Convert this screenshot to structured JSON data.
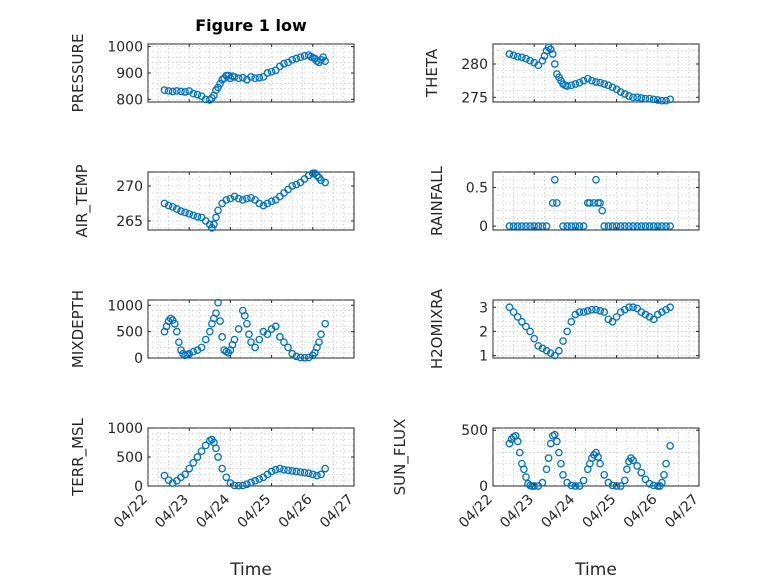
{
  "chart_data": [
    {
      "type": "scatter",
      "title": "Figure 1 low",
      "ylabel": "PRESSURE",
      "xlabel": "",
      "xlim": [
        "04/22",
        "04/27"
      ],
      "xticks": [
        "04/22",
        "04/23",
        "04/24",
        "04/25",
        "04/26",
        "04/27"
      ],
      "ylim": [
        790,
        1010
      ],
      "yticks": [
        800,
        900,
        1000
      ],
      "x_days": [
        0.4,
        0.5,
        0.6,
        0.7,
        0.8,
        0.9,
        1.0,
        1.1,
        1.2,
        1.3,
        1.4,
        1.5,
        1.55,
        1.6,
        1.65,
        1.7,
        1.75,
        1.8,
        1.85,
        1.9,
        1.95,
        2.0,
        2.05,
        2.1,
        2.2,
        2.3,
        2.4,
        2.5,
        2.6,
        2.7,
        2.8,
        2.9,
        3.0,
        3.1,
        3.2,
        3.3,
        3.4,
        3.5,
        3.6,
        3.7,
        3.8,
        3.9,
        3.95,
        4.0,
        4.05,
        4.1,
        4.15,
        4.2,
        4.25,
        4.3
      ],
      "values": [
        835,
        832,
        830,
        832,
        830,
        828,
        832,
        822,
        818,
        812,
        800,
        798,
        805,
        815,
        835,
        845,
        860,
        875,
        880,
        890,
        890,
        880,
        888,
        885,
        880,
        882,
        875,
        885,
        880,
        882,
        885,
        900,
        905,
        910,
        925,
        935,
        940,
        950,
        955,
        960,
        965,
        968,
        962,
        958,
        955,
        945,
        940,
        950,
        960,
        945
      ]
    },
    {
      "type": "scatter",
      "ylabel": "THETA",
      "xlabel": "",
      "xlim": [
        "04/22",
        "04/27"
      ],
      "xticks": [
        "04/22",
        "04/23",
        "04/24",
        "04/25",
        "04/26",
        "04/27"
      ],
      "ylim": [
        274.3,
        283
      ],
      "yticks": [
        275,
        280
      ],
      "x_days": [
        0.4,
        0.5,
        0.6,
        0.7,
        0.8,
        0.9,
        1.0,
        1.1,
        1.2,
        1.25,
        1.3,
        1.35,
        1.4,
        1.45,
        1.5,
        1.55,
        1.6,
        1.65,
        1.7,
        1.75,
        1.8,
        1.9,
        2.0,
        2.1,
        2.2,
        2.3,
        2.4,
        2.5,
        2.6,
        2.7,
        2.8,
        2.9,
        3.0,
        3.1,
        3.2,
        3.3,
        3.4,
        3.5,
        3.6,
        3.7,
        3.8,
        3.9,
        4.0,
        4.1,
        4.2,
        4.3
      ],
      "values": [
        281.5,
        281.3,
        281.1,
        281,
        280.8,
        280.5,
        280.2,
        279.8,
        280.5,
        281.2,
        282,
        282.5,
        282.2,
        281.5,
        280,
        278.5,
        278,
        277.5,
        277,
        276.8,
        276.7,
        276.8,
        277,
        277.2,
        277.5,
        277.8,
        277.5,
        277.3,
        277.2,
        277,
        276.8,
        276.5,
        276.2,
        275.8,
        275.5,
        275.2,
        275.0,
        275.0,
        274.9,
        274.8,
        274.8,
        274.7,
        274.6,
        274.5,
        274.5,
        274.7
      ]
    },
    {
      "type": "scatter",
      "ylabel": "AIR_TEMP",
      "xlabel": "",
      "xlim": [
        "04/22",
        "04/27"
      ],
      "xticks": [
        "04/22",
        "04/23",
        "04/24",
        "04/25",
        "04/26",
        "04/27"
      ],
      "ylim": [
        263.7,
        272
      ],
      "yticks": [
        265,
        270
      ],
      "x_days": [
        0.4,
        0.5,
        0.6,
        0.7,
        0.8,
        0.9,
        1.0,
        1.1,
        1.2,
        1.3,
        1.4,
        1.5,
        1.55,
        1.6,
        1.65,
        1.7,
        1.8,
        1.9,
        2.0,
        2.1,
        2.2,
        2.3,
        2.4,
        2.5,
        2.6,
        2.7,
        2.8,
        2.9,
        3.0,
        3.1,
        3.2,
        3.3,
        3.4,
        3.5,
        3.6,
        3.7,
        3.8,
        3.9,
        4.0,
        4.05,
        4.1,
        4.15,
        4.2,
        4.3
      ],
      "values": [
        267.5,
        267.2,
        267,
        266.7,
        266.4,
        266.2,
        266,
        265.8,
        265.6,
        265.5,
        265,
        264.5,
        264,
        264.5,
        265.5,
        266.5,
        267.5,
        268,
        268.2,
        268.5,
        268.2,
        268,
        268.2,
        268.3,
        268,
        267.5,
        267.2,
        267.5,
        267.8,
        268,
        268.5,
        269,
        269.5,
        270,
        270.2,
        270.5,
        271,
        271.5,
        271.8,
        271.8,
        271.5,
        271.2,
        270.8,
        270.5
      ]
    },
    {
      "type": "scatter",
      "ylabel": "RAINFALL",
      "xlabel": "",
      "xlim": [
        "04/22",
        "04/27"
      ],
      "xticks": [
        "04/22",
        "04/23",
        "04/24",
        "04/25",
        "04/26",
        "04/27"
      ],
      "ylim": [
        -0.05,
        0.7
      ],
      "yticks": [
        0,
        0.5
      ],
      "x_days": [
        0.4,
        0.5,
        0.6,
        0.7,
        0.8,
        0.9,
        1.0,
        1.1,
        1.2,
        1.3,
        1.45,
        1.5,
        1.55,
        1.7,
        1.8,
        1.9,
        2.0,
        2.1,
        2.2,
        2.3,
        2.35,
        2.45,
        2.5,
        2.55,
        2.6,
        2.65,
        2.7,
        2.8,
        2.9,
        3.0,
        3.1,
        3.2,
        3.3,
        3.4,
        3.5,
        3.6,
        3.7,
        3.8,
        3.9,
        4.0,
        4.1,
        4.2,
        4.3
      ],
      "values": [
        0,
        0,
        0,
        0,
        0,
        0,
        0,
        0,
        0,
        0,
        0.3,
        0.6,
        0.3,
        0,
        0,
        0,
        0,
        0,
        0,
        0.3,
        0.3,
        0.3,
        0.6,
        0.3,
        0.3,
        0.2,
        0,
        0,
        0,
        0,
        0,
        0,
        0,
        0,
        0,
        0,
        0,
        0,
        0,
        0,
        0,
        0,
        0
      ]
    },
    {
      "type": "scatter",
      "ylabel": "MIXDEPTH",
      "xlabel": "",
      "xlim": [
        "04/22",
        "04/27"
      ],
      "xticks": [
        "04/22",
        "04/23",
        "04/24",
        "04/25",
        "04/26",
        "04/27"
      ],
      "ylim": [
        0,
        1100
      ],
      "yticks": [
        0,
        500,
        1000
      ],
      "x_days": [
        0.4,
        0.45,
        0.5,
        0.55,
        0.6,
        0.65,
        0.7,
        0.75,
        0.8,
        0.85,
        0.9,
        0.95,
        1.0,
        1.1,
        1.2,
        1.3,
        1.4,
        1.5,
        1.55,
        1.6,
        1.65,
        1.7,
        1.75,
        1.8,
        1.85,
        1.9,
        1.95,
        2.0,
        2.05,
        2.1,
        2.2,
        2.3,
        2.35,
        2.4,
        2.45,
        2.5,
        2.6,
        2.7,
        2.8,
        2.9,
        3.0,
        3.1,
        3.2,
        3.3,
        3.4,
        3.5,
        3.6,
        3.7,
        3.8,
        3.9,
        4.0,
        4.05,
        4.1,
        4.15,
        4.2,
        4.3
      ],
      "values": [
        500,
        600,
        700,
        750,
        720,
        650,
        500,
        300,
        150,
        80,
        50,
        60,
        80,
        120,
        150,
        200,
        350,
        500,
        650,
        750,
        850,
        1050,
        700,
        400,
        150,
        120,
        100,
        150,
        250,
        350,
        550,
        900,
        800,
        650,
        450,
        300,
        200,
        350,
        500,
        450,
        550,
        600,
        400,
        300,
        200,
        80,
        30,
        10,
        5,
        10,
        50,
        100,
        200,
        300,
        450,
        650
      ]
    },
    {
      "type": "scatter",
      "ylabel": "H2OMIXRA",
      "xlabel": "",
      "xlim": [
        "04/22",
        "04/27"
      ],
      "xticks": [
        "04/22",
        "04/23",
        "04/24",
        "04/25",
        "04/26",
        "04/27"
      ],
      "ylim": [
        0.9,
        3.3
      ],
      "yticks": [
        1,
        2,
        3
      ],
      "x_days": [
        0.4,
        0.5,
        0.6,
        0.7,
        0.8,
        0.9,
        1.0,
        1.1,
        1.2,
        1.3,
        1.4,
        1.5,
        1.6,
        1.7,
        1.8,
        1.9,
        2.0,
        2.1,
        2.2,
        2.3,
        2.4,
        2.5,
        2.6,
        2.7,
        2.8,
        2.9,
        3.0,
        3.1,
        3.2,
        3.3,
        3.4,
        3.5,
        3.6,
        3.7,
        3.8,
        3.9,
        4.0,
        4.1,
        4.2,
        4.3
      ],
      "values": [
        3.0,
        2.8,
        2.6,
        2.4,
        2.2,
        2.0,
        1.7,
        1.4,
        1.3,
        1.2,
        1.1,
        1.0,
        1.2,
        1.6,
        2.0,
        2.4,
        2.7,
        2.8,
        2.8,
        2.85,
        2.9,
        2.9,
        2.85,
        2.8,
        2.5,
        2.4,
        2.6,
        2.8,
        2.9,
        3.0,
        3.0,
        2.95,
        2.8,
        2.7,
        2.6,
        2.5,
        2.7,
        2.8,
        2.9,
        3.0
      ]
    },
    {
      "type": "scatter",
      "ylabel": "TERR_MSL",
      "xlabel": "Time",
      "xlim": [
        "04/22",
        "04/27"
      ],
      "xticks": [
        "04/22",
        "04/23",
        "04/24",
        "04/25",
        "04/26",
        "04/27"
      ],
      "ylim": [
        0,
        1000
      ],
      "yticks": [
        0,
        500,
        1000
      ],
      "x_days": [
        0.4,
        0.5,
        0.6,
        0.7,
        0.8,
        0.9,
        1.0,
        1.1,
        1.2,
        1.3,
        1.4,
        1.5,
        1.55,
        1.6,
        1.65,
        1.7,
        1.8,
        1.9,
        2.0,
        2.1,
        2.2,
        2.3,
        2.4,
        2.5,
        2.6,
        2.7,
        2.8,
        2.9,
        3.0,
        3.1,
        3.2,
        3.3,
        3.4,
        3.5,
        3.6,
        3.7,
        3.8,
        3.9,
        4.0,
        4.1,
        4.2,
        4.3
      ],
      "values": [
        180,
        100,
        50,
        90,
        150,
        200,
        300,
        400,
        500,
        600,
        700,
        780,
        800,
        750,
        650,
        500,
        300,
        150,
        50,
        10,
        5,
        10,
        30,
        60,
        90,
        120,
        150,
        200,
        250,
        280,
        300,
        280,
        270,
        260,
        250,
        240,
        230,
        220,
        200,
        180,
        200,
        300
      ]
    },
    {
      "type": "scatter",
      "ylabel": "SUN_FLUX",
      "xlabel": "Time",
      "xlim": [
        "04/22",
        "04/27"
      ],
      "xticks": [
        "04/22",
        "04/23",
        "04/24",
        "04/25",
        "04/26",
        "04/27"
      ],
      "ylim": [
        0,
        520
      ],
      "yticks": [
        0,
        500
      ],
      "x_days": [
        0.4,
        0.45,
        0.5,
        0.55,
        0.6,
        0.65,
        0.7,
        0.75,
        0.8,
        0.85,
        0.9,
        0.95,
        1.0,
        1.1,
        1.2,
        1.3,
        1.35,
        1.4,
        1.45,
        1.5,
        1.55,
        1.6,
        1.65,
        1.7,
        1.8,
        1.9,
        2.0,
        2.1,
        2.2,
        2.3,
        2.35,
        2.4,
        2.45,
        2.5,
        2.55,
        2.6,
        2.7,
        2.8,
        2.9,
        3.0,
        3.1,
        3.2,
        3.25,
        3.3,
        3.35,
        3.4,
        3.5,
        3.6,
        3.7,
        3.8,
        3.9,
        4.0,
        4.05,
        4.1,
        4.15,
        4.2,
        4.3
      ],
      "values": [
        380,
        420,
        440,
        450,
        400,
        300,
        200,
        150,
        80,
        20,
        5,
        0,
        0,
        0,
        30,
        150,
        250,
        380,
        450,
        460,
        400,
        300,
        200,
        100,
        30,
        5,
        0,
        0,
        50,
        150,
        200,
        250,
        280,
        300,
        260,
        200,
        100,
        30,
        5,
        0,
        0,
        50,
        150,
        220,
        250,
        230,
        180,
        120,
        60,
        20,
        5,
        0,
        0,
        30,
        100,
        200,
        360
      ]
    }
  ]
}
